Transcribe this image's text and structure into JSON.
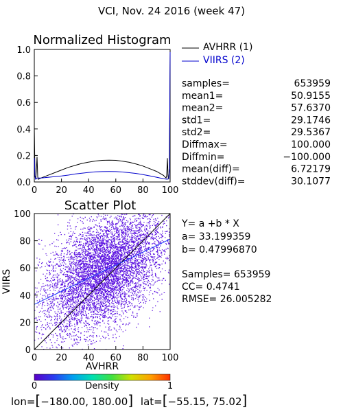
{
  "title": "VCI,  Nov. 24 2016 (week 47)",
  "colors": {
    "background": "#ffffff",
    "text": "#000000",
    "series1": "#000000",
    "series2": "#0000cc",
    "scatter": "#5a10e0",
    "fitline": "#1a3cff"
  },
  "chart_data": [
    {
      "type": "line",
      "title": "Normalized Histogram",
      "xlim": [
        0,
        100
      ],
      "ylim": [
        0.0,
        1.0
      ],
      "xticks": [
        "0",
        "20",
        "40",
        "60",
        "80",
        "100"
      ],
      "yticks": [
        "0.0",
        "0.2",
        "0.4",
        "0.6",
        "0.8",
        "1.0"
      ],
      "grid": false,
      "legend_position": "right",
      "series": [
        {
          "name": "AVHRR (1)",
          "color": "#000000",
          "points": [
            [
              0,
              0.42
            ],
            [
              0.5,
              0.05
            ],
            [
              1,
              0.02
            ],
            [
              1.5,
              0.08
            ],
            [
              2,
              0.19
            ],
            [
              2.5,
              0.04
            ],
            [
              3,
              0.02
            ],
            [
              5,
              0.03
            ],
            [
              10,
              0.05
            ],
            [
              15,
              0.07
            ],
            [
              20,
              0.09
            ],
            [
              25,
              0.11
            ],
            [
              30,
              0.125
            ],
            [
              35,
              0.14
            ],
            [
              40,
              0.15
            ],
            [
              45,
              0.158
            ],
            [
              50,
              0.163
            ],
            [
              55,
              0.165
            ],
            [
              60,
              0.163
            ],
            [
              65,
              0.157
            ],
            [
              70,
              0.148
            ],
            [
              75,
              0.135
            ],
            [
              80,
              0.12
            ],
            [
              85,
              0.1
            ],
            [
              90,
              0.08
            ],
            [
              95,
              0.05
            ],
            [
              97,
              0.03
            ],
            [
              97.5,
              0.05
            ],
            [
              98,
              0.18
            ],
            [
              98.5,
              0.04
            ],
            [
              99,
              0.02
            ],
            [
              99.5,
              0.1
            ],
            [
              100,
              1.0
            ]
          ]
        },
        {
          "name": "VIIRS (2)",
          "color": "#0000cc",
          "points": [
            [
              0,
              0.18
            ],
            [
              0.5,
              0.04
            ],
            [
              1,
              0.02
            ],
            [
              2,
              0.03
            ],
            [
              5,
              0.03
            ],
            [
              10,
              0.035
            ],
            [
              15,
              0.04
            ],
            [
              20,
              0.045
            ],
            [
              25,
              0.052
            ],
            [
              30,
              0.06
            ],
            [
              35,
              0.066
            ],
            [
              40,
              0.072
            ],
            [
              45,
              0.076
            ],
            [
              50,
              0.078
            ],
            [
              55,
              0.079
            ],
            [
              60,
              0.078
            ],
            [
              65,
              0.075
            ],
            [
              70,
              0.07
            ],
            [
              75,
              0.064
            ],
            [
              80,
              0.056
            ],
            [
              85,
              0.046
            ],
            [
              90,
              0.036
            ],
            [
              95,
              0.025
            ],
            [
              98,
              0.02
            ],
            [
              99,
              0.03
            ],
            [
              99.5,
              0.1
            ],
            [
              100,
              0.98
            ]
          ]
        }
      ]
    },
    {
      "type": "scatter",
      "title": "Scatter Plot",
      "xlabel": "AVHRR",
      "ylabel": "VIIRS",
      "xlim": [
        0,
        100
      ],
      "ylim": [
        0,
        100
      ],
      "xticks": [
        "0",
        "20",
        "40",
        "60",
        "80",
        "100"
      ],
      "yticks": [
        "0",
        "20",
        "40",
        "60",
        "80",
        "100"
      ],
      "grid": false,
      "fit": {
        "intercept": 33.199359,
        "slope": 0.4799687
      },
      "identity_line": true,
      "density_distribution": {
        "mean_x": 50.9155,
        "mean_y": 57.637,
        "std_x": 29.1746,
        "std_y": 29.5367,
        "cc": 0.4741,
        "samples": 653959
      }
    }
  ],
  "stats": [
    {
      "label": "samples=",
      "value": "653959"
    },
    {
      "label": "mean1=",
      "value": "50.9155"
    },
    {
      "label": "mean2=",
      "value": "57.6370"
    },
    {
      "label": "std1=",
      "value": "29.1746"
    },
    {
      "label": "std2=",
      "value": "29.5367"
    },
    {
      "label": "Diffmax=",
      "value": "100.000"
    },
    {
      "label": "Diffmin=",
      "value": "−100.000"
    },
    {
      "label": "mean(diff)=",
      "value": "6.72179"
    },
    {
      "label": "stddev(diff)=",
      "value": "30.1077"
    }
  ],
  "regression": {
    "equation": "Y= a +b * X",
    "a": "a= 33.199359",
    "b": "b= 0.47996870",
    "samples": "Samples= 653959",
    "cc": "CC=  0.4741",
    "rmse": "RMSE= 26.005282"
  },
  "colorbar": {
    "label": "Density",
    "min_label": "0",
    "max_label": "1",
    "stops": [
      "#5a00c8",
      "#2a3cf0",
      "#00a0f0",
      "#00e0b0",
      "#40e040",
      "#d0e000",
      "#ffa000",
      "#ff3000"
    ]
  },
  "footer": {
    "lon_prefix": "lon=",
    "lon_range": "−180.00, 180.00",
    "lat_prefix": "lat=",
    "lat_range": "−55.15, 75.02"
  }
}
